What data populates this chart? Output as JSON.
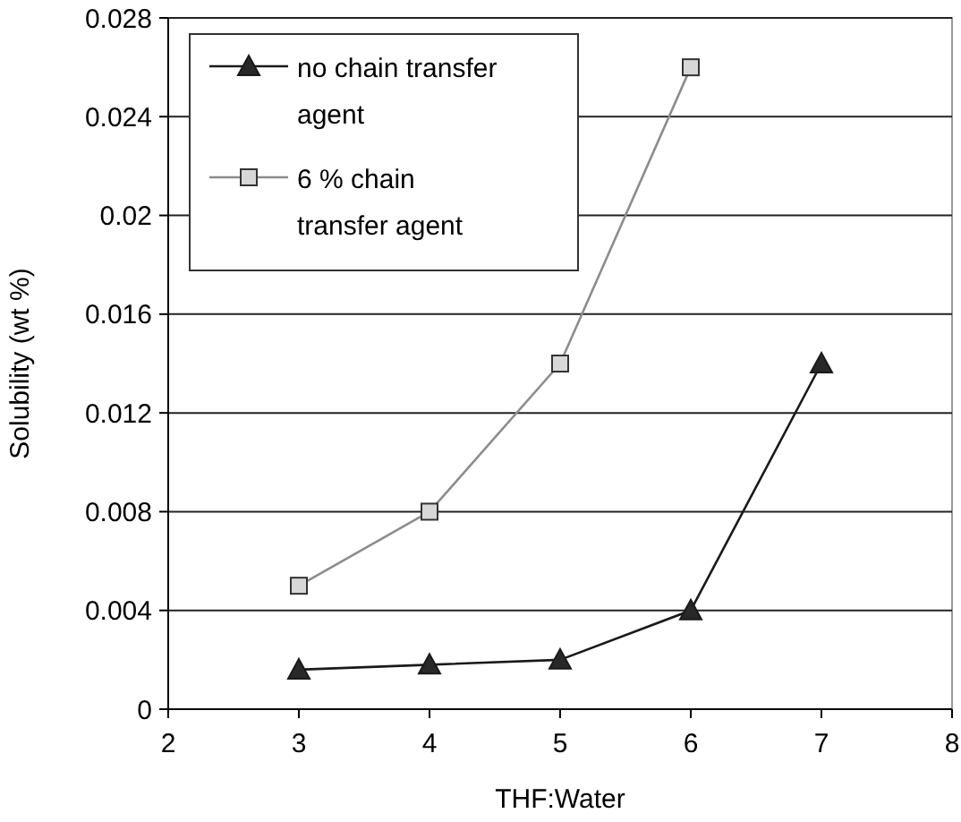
{
  "chart_data": {
    "type": "line",
    "xlabel": "THF:Water",
    "ylabel": "Solubility (wt %)",
    "x": [
      3,
      4,
      5,
      6,
      7
    ],
    "series": [
      {
        "name": "no chain transfer agent",
        "color": "#1a1a1a",
        "marker": "triangle",
        "values": [
          0.0016,
          0.0018,
          0.002,
          0.004,
          0.014
        ]
      },
      {
        "name": "6 % chain transfer agent",
        "color": "#8c8c8c",
        "marker": "square",
        "values": [
          0.005,
          0.008,
          0.014,
          0.026,
          null
        ]
      }
    ],
    "xlim": [
      2,
      8
    ],
    "xticks": [
      2,
      3,
      4,
      5,
      6,
      7,
      8
    ],
    "ylim": [
      0,
      0.028
    ],
    "yticks": [
      0,
      0.004,
      0.008,
      0.012,
      0.016,
      0.02,
      0.024,
      0.028
    ],
    "grid": "y",
    "legend": "top left"
  }
}
